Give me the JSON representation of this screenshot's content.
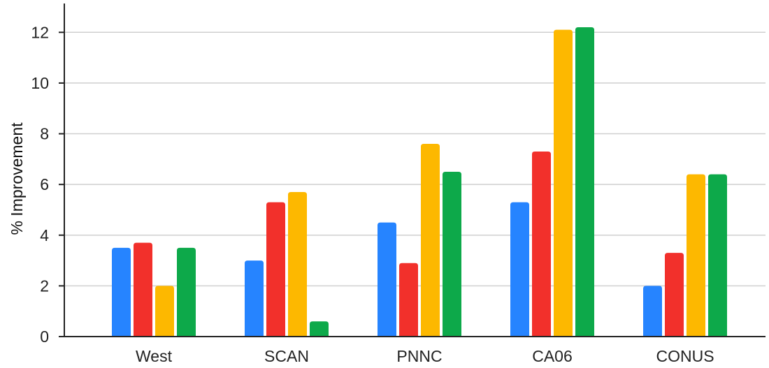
{
  "chart_data": {
    "type": "bar",
    "title": "",
    "xlabel": "",
    "ylabel": "% Improvement",
    "ylim": [
      0,
      13
    ],
    "yticks": [
      0,
      2,
      4,
      6,
      8,
      10,
      12
    ],
    "grid": true,
    "legend": "none",
    "categories": [
      "West",
      "SCAN",
      "PNNC",
      "CA06",
      "CONUS"
    ],
    "series": [
      {
        "color": "#2684FF",
        "values": [
          3.5,
          3.0,
          4.5,
          5.3,
          2.0
        ]
      },
      {
        "color": "#F2302B",
        "values": [
          3.7,
          5.3,
          2.9,
          7.3,
          3.3
        ]
      },
      {
        "color": "#FDB800",
        "values": [
          2.0,
          5.7,
          7.6,
          12.1,
          6.4
        ]
      },
      {
        "color": "#0DA94A",
        "values": [
          3.5,
          0.6,
          6.5,
          12.2,
          6.4
        ]
      }
    ]
  }
}
